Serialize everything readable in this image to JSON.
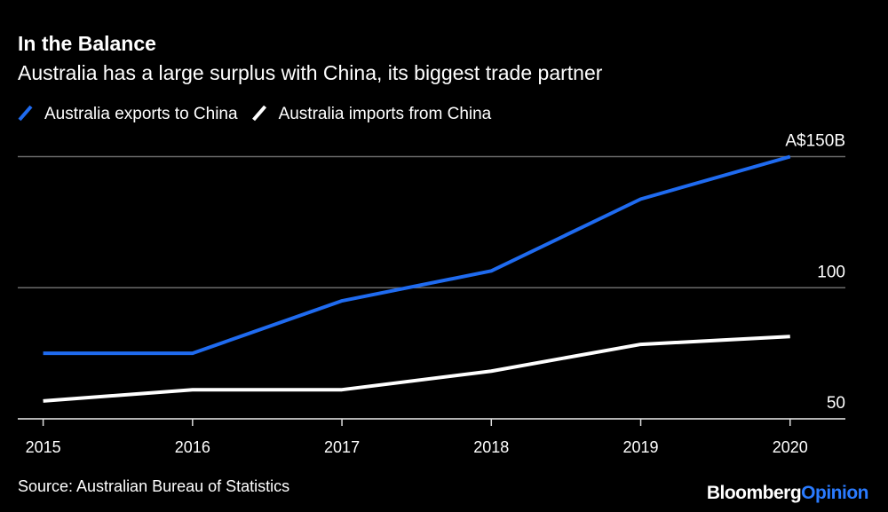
{
  "chart_data": {
    "type": "line",
    "title": "In the Balance",
    "subtitle": "Australia has a large surplus with China, its biggest trade partner",
    "x": [
      2015,
      2016,
      2017,
      2018,
      2019,
      2020
    ],
    "series": [
      {
        "name": "Australia exports to China",
        "color": "#1f6bf0",
        "values": [
          75,
          75,
          95,
          106.4,
          133.8,
          150
        ]
      },
      {
        "name": "Australia imports from China",
        "color": "#ffffff",
        "values": [
          56.8,
          61.1,
          61.1,
          68.2,
          78.4,
          81.4
        ]
      }
    ],
    "xlim": [
      2014.83,
      2020.37
    ],
    "xticks": [
      2015,
      2016,
      2017,
      2018,
      2019,
      2020
    ],
    "ylim": [
      50,
      150
    ],
    "yticks": [
      50,
      100,
      {
        "value": 150,
        "label": "A$150B"
      }
    ],
    "grid": true,
    "source": "Source: Australian Bureau of Statistics",
    "branding": [
      "Bloomberg",
      "Opinion"
    ]
  }
}
